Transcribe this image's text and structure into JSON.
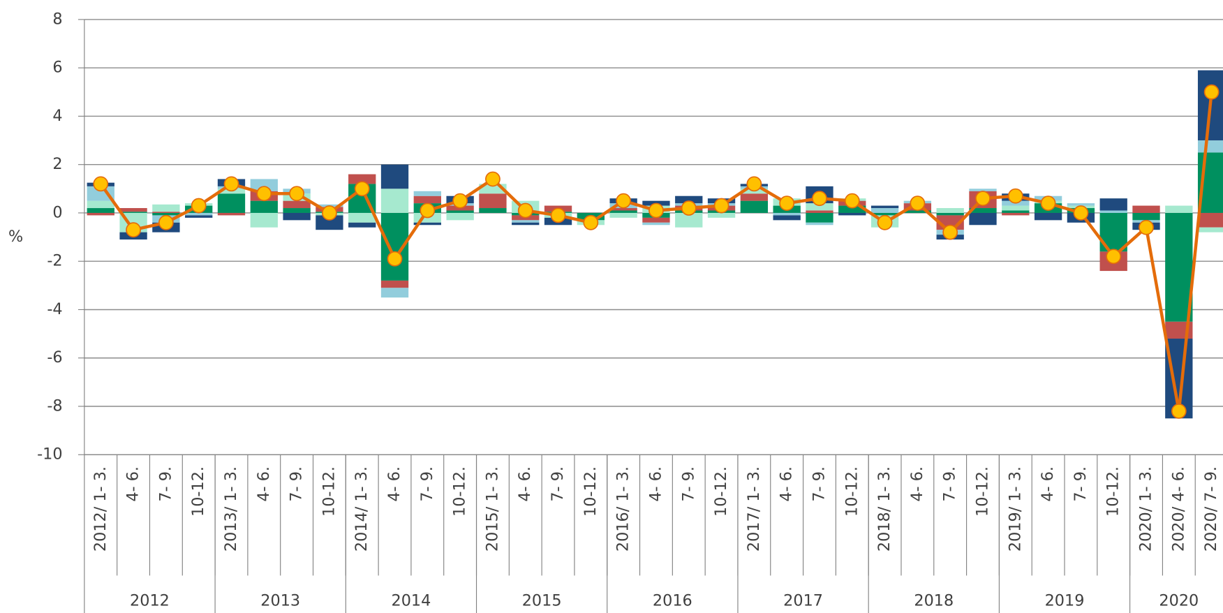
{
  "chart_data": {
    "type": "bar",
    "y_label": "%",
    "categories": [
      "2012/ 1- 3.",
      "4- 6.",
      "7- 9.",
      "10-12.",
      "2013/ 1- 3.",
      "4- 6.",
      "7- 9.",
      "10-12.",
      "2014/ 1- 3.",
      "4- 6.",
      "7- 9.",
      "10-12.",
      "2015/ 1- 3.",
      "4- 6.",
      "7- 9.",
      "10-12.",
      "2016/ 1- 3.",
      "4- 6.",
      "7- 9.",
      "10-12.",
      "2017/ 1- 3.",
      "4- 6.",
      "7- 9.",
      "10-12.",
      "2018/ 1- 3.",
      "4- 6.",
      "7- 9.",
      "10-12.",
      "2019/ 1- 3.",
      "4- 6.",
      "7- 9.",
      "10-12.",
      "2020/ 1- 3.",
      "2020/ 4- 6.",
      "2020/ 7- 9."
    ],
    "groups": [
      "2012",
      "2013",
      "2014",
      "2015",
      "2016",
      "2017",
      "2018",
      "2019",
      "2020"
    ],
    "ylim": [
      -10,
      8
    ],
    "yticks": [
      -10,
      -8,
      -6,
      -4,
      -2,
      0,
      2,
      4,
      6,
      8
    ],
    "grid": true,
    "stacked": true,
    "series": [
      {
        "color": "#00905f",
        "values": [
          0.2,
          0.05,
          -0.1,
          0.3,
          0.8,
          0.5,
          0.2,
          0.05,
          1.2,
          -2.8,
          0.4,
          0.1,
          0.2,
          -0.1,
          0.05,
          -0.3,
          0.1,
          -0.2,
          0.1,
          0.1,
          0.5,
          0.3,
          -0.4,
          0.3,
          -0.1,
          0.1,
          -0.1,
          0.2,
          0.1,
          0.4,
          0.2,
          -1.6,
          -0.3,
          -4.5,
          2.5
        ]
      },
      {
        "color": "#c0504d",
        "values": [
          -0.1,
          0.15,
          0.05,
          0,
          -0.1,
          0.4,
          0.3,
          0.2,
          0.4,
          -0.3,
          0.3,
          0.2,
          0.6,
          -0.2,
          0.25,
          0,
          0.1,
          -0.2,
          0.2,
          0.2,
          0.3,
          0,
          0.1,
          0.2,
          0,
          0.3,
          -0.6,
          0.7,
          -0.1,
          0,
          0,
          -0.8,
          0.3,
          -0.7,
          -0.6
        ]
      },
      {
        "color": "#a6e9cf",
        "values": [
          0.3,
          -0.8,
          0.3,
          0.1,
          0.2,
          -0.6,
          0.3,
          -0.1,
          -0.4,
          1.0,
          -0.4,
          -0.3,
          0.4,
          0.5,
          -0.2,
          -0.2,
          -0.2,
          0.3,
          -0.6,
          -0.2,
          0.2,
          0.3,
          0.3,
          0.1,
          -0.5,
          0,
          0.2,
          0,
          0.2,
          0.1,
          0.1,
          0,
          0,
          0.3,
          -0.2
        ]
      },
      {
        "color": "#92cddc",
        "values": [
          0.6,
          0,
          -0.3,
          -0.1,
          0.1,
          0.5,
          0.2,
          0.1,
          0,
          -0.4,
          0.2,
          0.1,
          0,
          -0.1,
          0,
          0,
          0.2,
          -0.1,
          0.1,
          0.1,
          0.1,
          -0.1,
          -0.1,
          0,
          0.2,
          0.1,
          -0.2,
          0.1,
          0.2,
          0.2,
          0.1,
          0.1,
          -0.1,
          0,
          0.5
        ]
      },
      {
        "color": "#1f4a7e",
        "values": [
          0.15,
          -0.3,
          -0.4,
          -0.1,
          0.3,
          0,
          -0.3,
          -0.6,
          -0.2,
          1.0,
          -0.1,
          0.3,
          0,
          -0.1,
          -0.3,
          0,
          0.2,
          0.2,
          0.3,
          0.2,
          0.1,
          -0.2,
          0.7,
          -0.1,
          0.1,
          0,
          -0.2,
          -0.5,
          0.3,
          -0.3,
          -0.4,
          0.5,
          -0.3,
          -3.3,
          2.9
        ]
      }
    ],
    "line": {
      "color": "#e46c0a",
      "marker_color": "#ffc000",
      "values": [
        1.2,
        -0.7,
        -0.4,
        0.3,
        1.2,
        0.8,
        0.8,
        0.0,
        1.0,
        -1.9,
        0.1,
        0.5,
        1.4,
        0.1,
        -0.1,
        -0.4,
        0.5,
        0.1,
        0.2,
        0.3,
        1.2,
        0.4,
        0.6,
        0.5,
        -0.4,
        0.4,
        -0.8,
        0.6,
        0.7,
        0.4,
        0.0,
        -1.8,
        -0.6,
        -8.2,
        5.0
      ]
    }
  }
}
